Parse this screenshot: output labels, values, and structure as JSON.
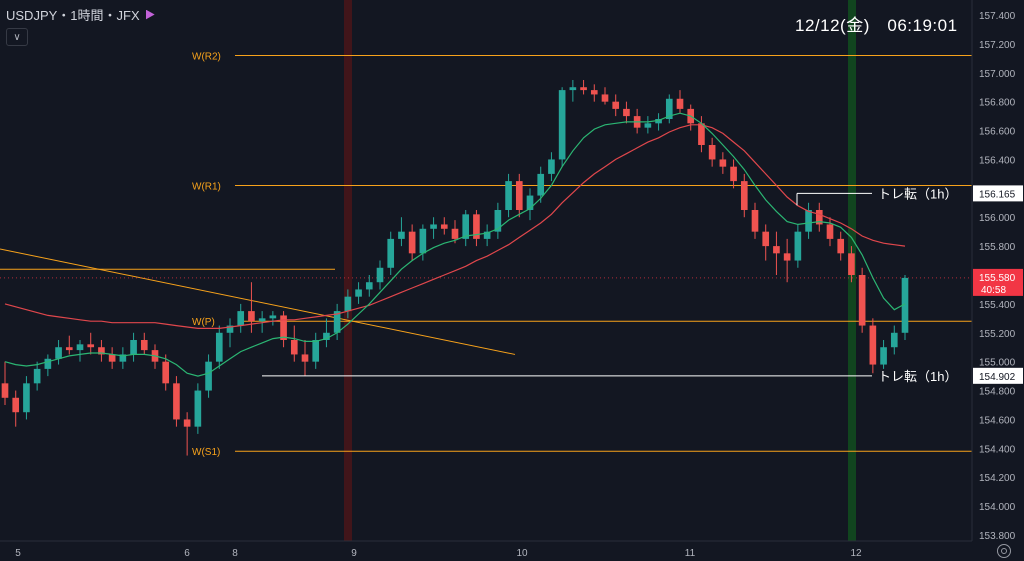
{
  "header": {
    "symbol_label": "USDJPY・1時間・JFX"
  },
  "clock": "12/12(金)　06:19:01",
  "colors": {
    "background": "#131722",
    "up": "#26a69a",
    "down": "#ef5350",
    "pivot": "#f7a21b",
    "ma_short": "#2bb673",
    "ma_long": "#e0474c",
    "annotation": "#ffffff",
    "price_badge": "#f23645"
  },
  "chart_data": {
    "type": "candlestick",
    "y_axis": {
      "ticks": [
        "157.400",
        "157.200",
        "157.000",
        "156.800",
        "156.600",
        "156.400",
        "156.200",
        "156.000",
        "155.800",
        "155.600",
        "155.400",
        "155.200",
        "155.000",
        "154.800",
        "154.600",
        "154.400",
        "154.200",
        "154.000",
        "153.800"
      ],
      "range": [
        153.75,
        157.5
      ],
      "position": "right"
    },
    "x_axis": {
      "labels": [
        "5",
        "6",
        "8",
        "9",
        "10",
        "11",
        "12"
      ]
    },
    "current_price": "155.580",
    "countdown": "40:58",
    "pivot_levels": [
      {
        "label": "W(R2)",
        "value": 157.12
      },
      {
        "label": "W(R1)",
        "value": 156.22
      },
      {
        "label": "W(P)",
        "value": 155.28
      },
      {
        "label": "W(S1)",
        "value": 154.38
      }
    ],
    "annotations": [
      {
        "text": "トレ転（1h）",
        "price": "156.165",
        "value": 156.165
      },
      {
        "text": "トレ転（1h）",
        "price": "154.902",
        "value": 154.902
      }
    ],
    "candles": [
      [
        154.85,
        155.0,
        154.7,
        154.75
      ],
      [
        154.75,
        154.8,
        154.55,
        154.65
      ],
      [
        154.65,
        154.9,
        154.6,
        154.85
      ],
      [
        154.85,
        155.0,
        154.8,
        154.95
      ],
      [
        154.95,
        155.05,
        154.9,
        155.02
      ],
      [
        155.02,
        155.15,
        154.98,
        155.1
      ],
      [
        155.1,
        155.18,
        155.05,
        155.08
      ],
      [
        155.08,
        155.15,
        155.0,
        155.12
      ],
      [
        155.12,
        155.2,
        155.05,
        155.1
      ],
      [
        155.1,
        155.15,
        155.0,
        155.05
      ],
      [
        155.05,
        155.1,
        154.95,
        155.0
      ],
      [
        155.0,
        155.1,
        154.95,
        155.05
      ],
      [
        155.05,
        155.2,
        155.0,
        155.15
      ],
      [
        155.15,
        155.2,
        155.05,
        155.08
      ],
      [
        155.08,
        155.12,
        154.95,
        155.0
      ],
      [
        155.0,
        155.05,
        154.8,
        154.85
      ],
      [
        154.85,
        154.9,
        154.55,
        154.6
      ],
      [
        154.6,
        154.65,
        154.35,
        154.55
      ],
      [
        154.55,
        154.85,
        154.5,
        154.8
      ],
      [
        154.8,
        155.05,
        154.75,
        155.0
      ],
      [
        155.0,
        155.25,
        154.95,
        155.2
      ],
      [
        155.2,
        155.3,
        155.1,
        155.25
      ],
      [
        155.25,
        155.4,
        155.2,
        155.35
      ],
      [
        155.35,
        155.55,
        155.2,
        155.28
      ],
      [
        155.28,
        155.35,
        155.2,
        155.3
      ],
      [
        155.3,
        155.35,
        155.25,
        155.32
      ],
      [
        155.32,
        155.35,
        155.1,
        155.15
      ],
      [
        155.15,
        155.25,
        155.0,
        155.05
      ],
      [
        155.05,
        155.15,
        154.9,
        155.0
      ],
      [
        155.0,
        155.2,
        154.95,
        155.15
      ],
      [
        155.15,
        155.3,
        155.1,
        155.2
      ],
      [
        155.2,
        155.4,
        155.15,
        155.35
      ],
      [
        155.35,
        155.5,
        155.3,
        155.45
      ],
      [
        155.45,
        155.55,
        155.4,
        155.5
      ],
      [
        155.5,
        155.6,
        155.45,
        155.55
      ],
      [
        155.55,
        155.7,
        155.5,
        155.65
      ],
      [
        155.65,
        155.9,
        155.6,
        155.85
      ],
      [
        155.85,
        156.0,
        155.8,
        155.9
      ],
      [
        155.9,
        155.95,
        155.7,
        155.75
      ],
      [
        155.75,
        155.95,
        155.7,
        155.92
      ],
      [
        155.92,
        156.0,
        155.85,
        155.95
      ],
      [
        155.95,
        156.0,
        155.88,
        155.92
      ],
      [
        155.92,
        155.98,
        155.82,
        155.85
      ],
      [
        155.85,
        156.05,
        155.8,
        156.02
      ],
      [
        156.02,
        156.05,
        155.8,
        155.85
      ],
      [
        155.85,
        155.95,
        155.8,
        155.9
      ],
      [
        155.9,
        156.1,
        155.85,
        156.05
      ],
      [
        156.05,
        156.3,
        156.0,
        156.25
      ],
      [
        156.25,
        156.3,
        156.0,
        156.05
      ],
      [
        156.05,
        156.2,
        155.98,
        156.15
      ],
      [
        156.15,
        156.35,
        156.1,
        156.3
      ],
      [
        156.3,
        156.45,
        156.25,
        156.4
      ],
      [
        156.4,
        156.9,
        156.35,
        156.88
      ],
      [
        156.88,
        156.95,
        156.8,
        156.9
      ],
      [
        156.9,
        156.95,
        156.85,
        156.88
      ],
      [
        156.88,
        156.92,
        156.8,
        156.85
      ],
      [
        156.85,
        156.9,
        156.78,
        156.8
      ],
      [
        156.8,
        156.85,
        156.7,
        156.75
      ],
      [
        156.75,
        156.8,
        156.65,
        156.7
      ],
      [
        156.7,
        156.75,
        156.58,
        156.62
      ],
      [
        156.62,
        156.7,
        156.58,
        156.65
      ],
      [
        156.65,
        156.72,
        156.6,
        156.68
      ],
      [
        156.68,
        156.85,
        156.65,
        156.82
      ],
      [
        156.82,
        156.88,
        156.72,
        156.75
      ],
      [
        156.75,
        156.78,
        156.6,
        156.65
      ],
      [
        156.65,
        156.7,
        156.45,
        156.5
      ],
      [
        156.5,
        156.55,
        156.35,
        156.4
      ],
      [
        156.4,
        156.45,
        156.3,
        156.35
      ],
      [
        156.35,
        156.4,
        156.2,
        156.25
      ],
      [
        156.25,
        156.3,
        156.0,
        156.05
      ],
      [
        156.05,
        156.1,
        155.85,
        155.9
      ],
      [
        155.9,
        155.95,
        155.7,
        155.8
      ],
      [
        155.8,
        155.9,
        155.6,
        155.75
      ],
      [
        155.75,
        155.85,
        155.55,
        155.7
      ],
      [
        155.7,
        155.95,
        155.65,
        155.9
      ],
      [
        155.9,
        156.1,
        155.85,
        156.05
      ],
      [
        156.05,
        156.1,
        155.9,
        155.95
      ],
      [
        155.95,
        156.0,
        155.8,
        155.85
      ],
      [
        155.85,
        155.9,
        155.7,
        155.75
      ],
      [
        155.75,
        155.8,
        155.55,
        155.6
      ],
      [
        155.6,
        155.65,
        155.2,
        155.25
      ],
      [
        155.25,
        155.3,
        154.92,
        154.98
      ],
      [
        154.98,
        155.15,
        154.95,
        155.1
      ],
      [
        155.1,
        155.25,
        155.05,
        155.2
      ],
      [
        155.2,
        155.6,
        155.15,
        155.58
      ]
    ],
    "ma_short": [
      155.0,
      154.98,
      154.97,
      154.98,
      155.0,
      155.02,
      155.04,
      155.05,
      155.06,
      155.06,
      155.05,
      155.04,
      155.05,
      155.05,
      155.04,
      155.02,
      154.98,
      154.92,
      154.9,
      154.92,
      154.97,
      155.02,
      155.07,
      155.1,
      155.13,
      155.16,
      155.17,
      155.16,
      155.14,
      155.14,
      155.16,
      155.2,
      155.26,
      155.33,
      155.4,
      155.48,
      155.56,
      155.64,
      155.7,
      155.75,
      155.79,
      155.82,
      155.84,
      155.87,
      155.88,
      155.89,
      155.92,
      155.98,
      156.02,
      156.06,
      156.13,
      156.22,
      156.35,
      156.46,
      156.55,
      156.61,
      156.64,
      156.65,
      156.66,
      156.66,
      156.66,
      156.67,
      156.7,
      156.72,
      156.7,
      156.65,
      156.58,
      156.5,
      156.42,
      156.33,
      156.22,
      156.12,
      156.04,
      155.97,
      155.95,
      155.96,
      155.97,
      155.96,
      155.93,
      155.86,
      155.74,
      155.58,
      155.44,
      155.36,
      155.4
    ],
    "ma_long": [
      155.4,
      155.38,
      155.36,
      155.34,
      155.32,
      155.31,
      155.3,
      155.29,
      155.28,
      155.28,
      155.27,
      155.27,
      155.27,
      155.27,
      155.27,
      155.26,
      155.25,
      155.24,
      155.23,
      155.23,
      155.23,
      155.24,
      155.25,
      155.26,
      155.27,
      155.28,
      155.29,
      155.29,
      155.3,
      155.31,
      155.32,
      155.33,
      155.35,
      155.37,
      155.39,
      155.42,
      155.45,
      155.48,
      155.51,
      155.54,
      155.57,
      155.6,
      155.63,
      155.66,
      155.7,
      155.73,
      155.77,
      155.81,
      155.86,
      155.91,
      155.96,
      156.02,
      156.1,
      156.17,
      156.24,
      156.3,
      156.35,
      156.4,
      156.44,
      156.48,
      156.52,
      156.55,
      156.59,
      156.62,
      156.64,
      156.64,
      156.62,
      156.58,
      156.52,
      156.46,
      156.38,
      156.3,
      156.22,
      156.14,
      156.08,
      156.04,
      156.02,
      155.99,
      155.96,
      155.92,
      155.87,
      155.84,
      155.82,
      155.81,
      155.8
    ]
  }
}
